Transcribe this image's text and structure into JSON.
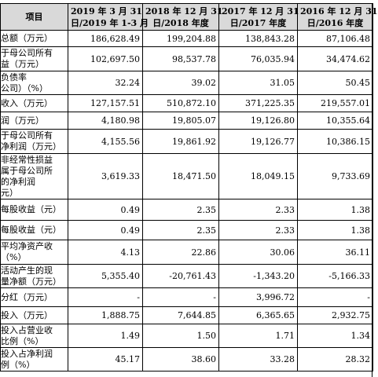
{
  "header": {
    "item": "项目",
    "periods": [
      [
        "2019 年 3 月 31",
        "日/2019 年 1-3 月"
      ],
      [
        "2018 年 12 月 31",
        "日/2018 年度"
      ],
      [
        "2017 年 12 月 31",
        "日/2017 年度"
      ],
      [
        "2016 年 12 月 31",
        "日/2016 年度"
      ]
    ]
  },
  "rows": [
    {
      "label": [
        "总额（万元）"
      ],
      "values": [
        "186,628.49",
        "199,204.88",
        "138,843.28",
        "87,106.48"
      ],
      "h": 21
    },
    {
      "label": [
        "于母公司所有",
        "益（万元）"
      ],
      "values": [
        "102,697.50",
        "98,537.78",
        "76,035.94",
        "34,474.62"
      ],
      "h": 31
    },
    {
      "label": [
        "负债率",
        "公司）（%）"
      ],
      "values": [
        "32.24",
        "39.02",
        "31.05",
        "50.45"
      ],
      "h": 30
    },
    {
      "label": [
        "收入（万元）"
      ],
      "values": [
        "127,157.51",
        "510,872.10",
        "371,225.35",
        "219,557.01"
      ],
      "h": 22
    },
    {
      "label": [
        "润（万元）"
      ],
      "values": [
        "4,180.98",
        "19,805.07",
        "19,126.80",
        "10,355.64"
      ],
      "h": 22
    },
    {
      "label": [
        "于母公司所有",
        "净利润（万元）"
      ],
      "values": [
        "4,155.56",
        "19,861.92",
        "19,126.77",
        "10,386.15"
      ],
      "h": 31
    },
    {
      "label": [
        "非经常性损益",
        "属于母公司所",
        "的净利润",
        "元）"
      ],
      "values": [
        "3,619.33",
        "18,471.50",
        "18,049.15",
        "9,733.69"
      ],
      "h": 58
    },
    {
      "label": [
        "每股收益（元）"
      ],
      "values": [
        "0.49",
        "2.35",
        "2.33",
        "1.38"
      ],
      "h": 27
    },
    {
      "label": [
        "每股收益（元）"
      ],
      "values": [
        "0.49",
        "2.35",
        "2.33",
        "1.38"
      ],
      "h": 25
    },
    {
      "label": [
        "平均净资产收",
        "（%）"
      ],
      "values": [
        "4.13",
        "22.86",
        "30.06",
        "36.11"
      ],
      "h": 31
    },
    {
      "label": [
        "活动产生的现",
        "量净额（万元）"
      ],
      "values": [
        "5,355.40",
        "-20,761.43",
        "-1,343.20",
        "-5,166.33"
      ],
      "h": 30
    },
    {
      "label": [
        "分红（万元）"
      ],
      "values": [
        "-",
        "-",
        "3,996.72",
        "-"
      ],
      "h": 24
    },
    {
      "label": [
        "投入（万元）"
      ],
      "values": [
        "1,888.75",
        "7,644.85",
        "6,365.65",
        "2,932.75"
      ],
      "h": 22
    },
    {
      "label": [
        "投入占营业收",
        "比例（%）"
      ],
      "values": [
        "1.49",
        "1.50",
        "1.71",
        "1.34"
      ],
      "h": 30
    },
    {
      "label": [
        "投入占净利润",
        "例（%）"
      ],
      "values": [
        "45.17",
        "38.60",
        "33.28",
        "28.32"
      ],
      "h": 30
    }
  ]
}
